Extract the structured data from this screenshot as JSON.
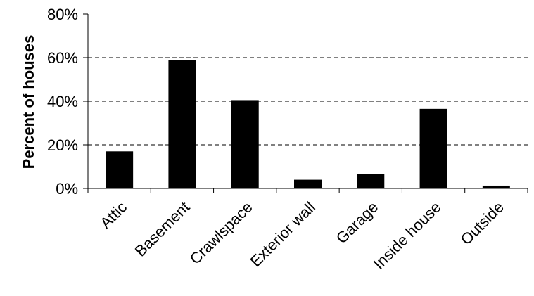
{
  "chart_data": {
    "type": "bar",
    "categories": [
      "Attic",
      "Basement",
      "Crawlspace",
      "Exterior wall",
      "Garage",
      "Inside house",
      "Outside"
    ],
    "values": [
      17,
      59,
      40.5,
      4,
      6.5,
      36.5,
      1.3
    ],
    "title": "",
    "xlabel": "",
    "ylabel": "Percent of houses",
    "ylim": [
      0,
      80
    ],
    "yticks": [
      "0%",
      "20%",
      "40%",
      "60%",
      "80%"
    ],
    "grid": "dashed horizontal",
    "legend": "none",
    "colors": {
      "bar": "#000000",
      "grid": "#000000",
      "axis": "#000000"
    }
  }
}
